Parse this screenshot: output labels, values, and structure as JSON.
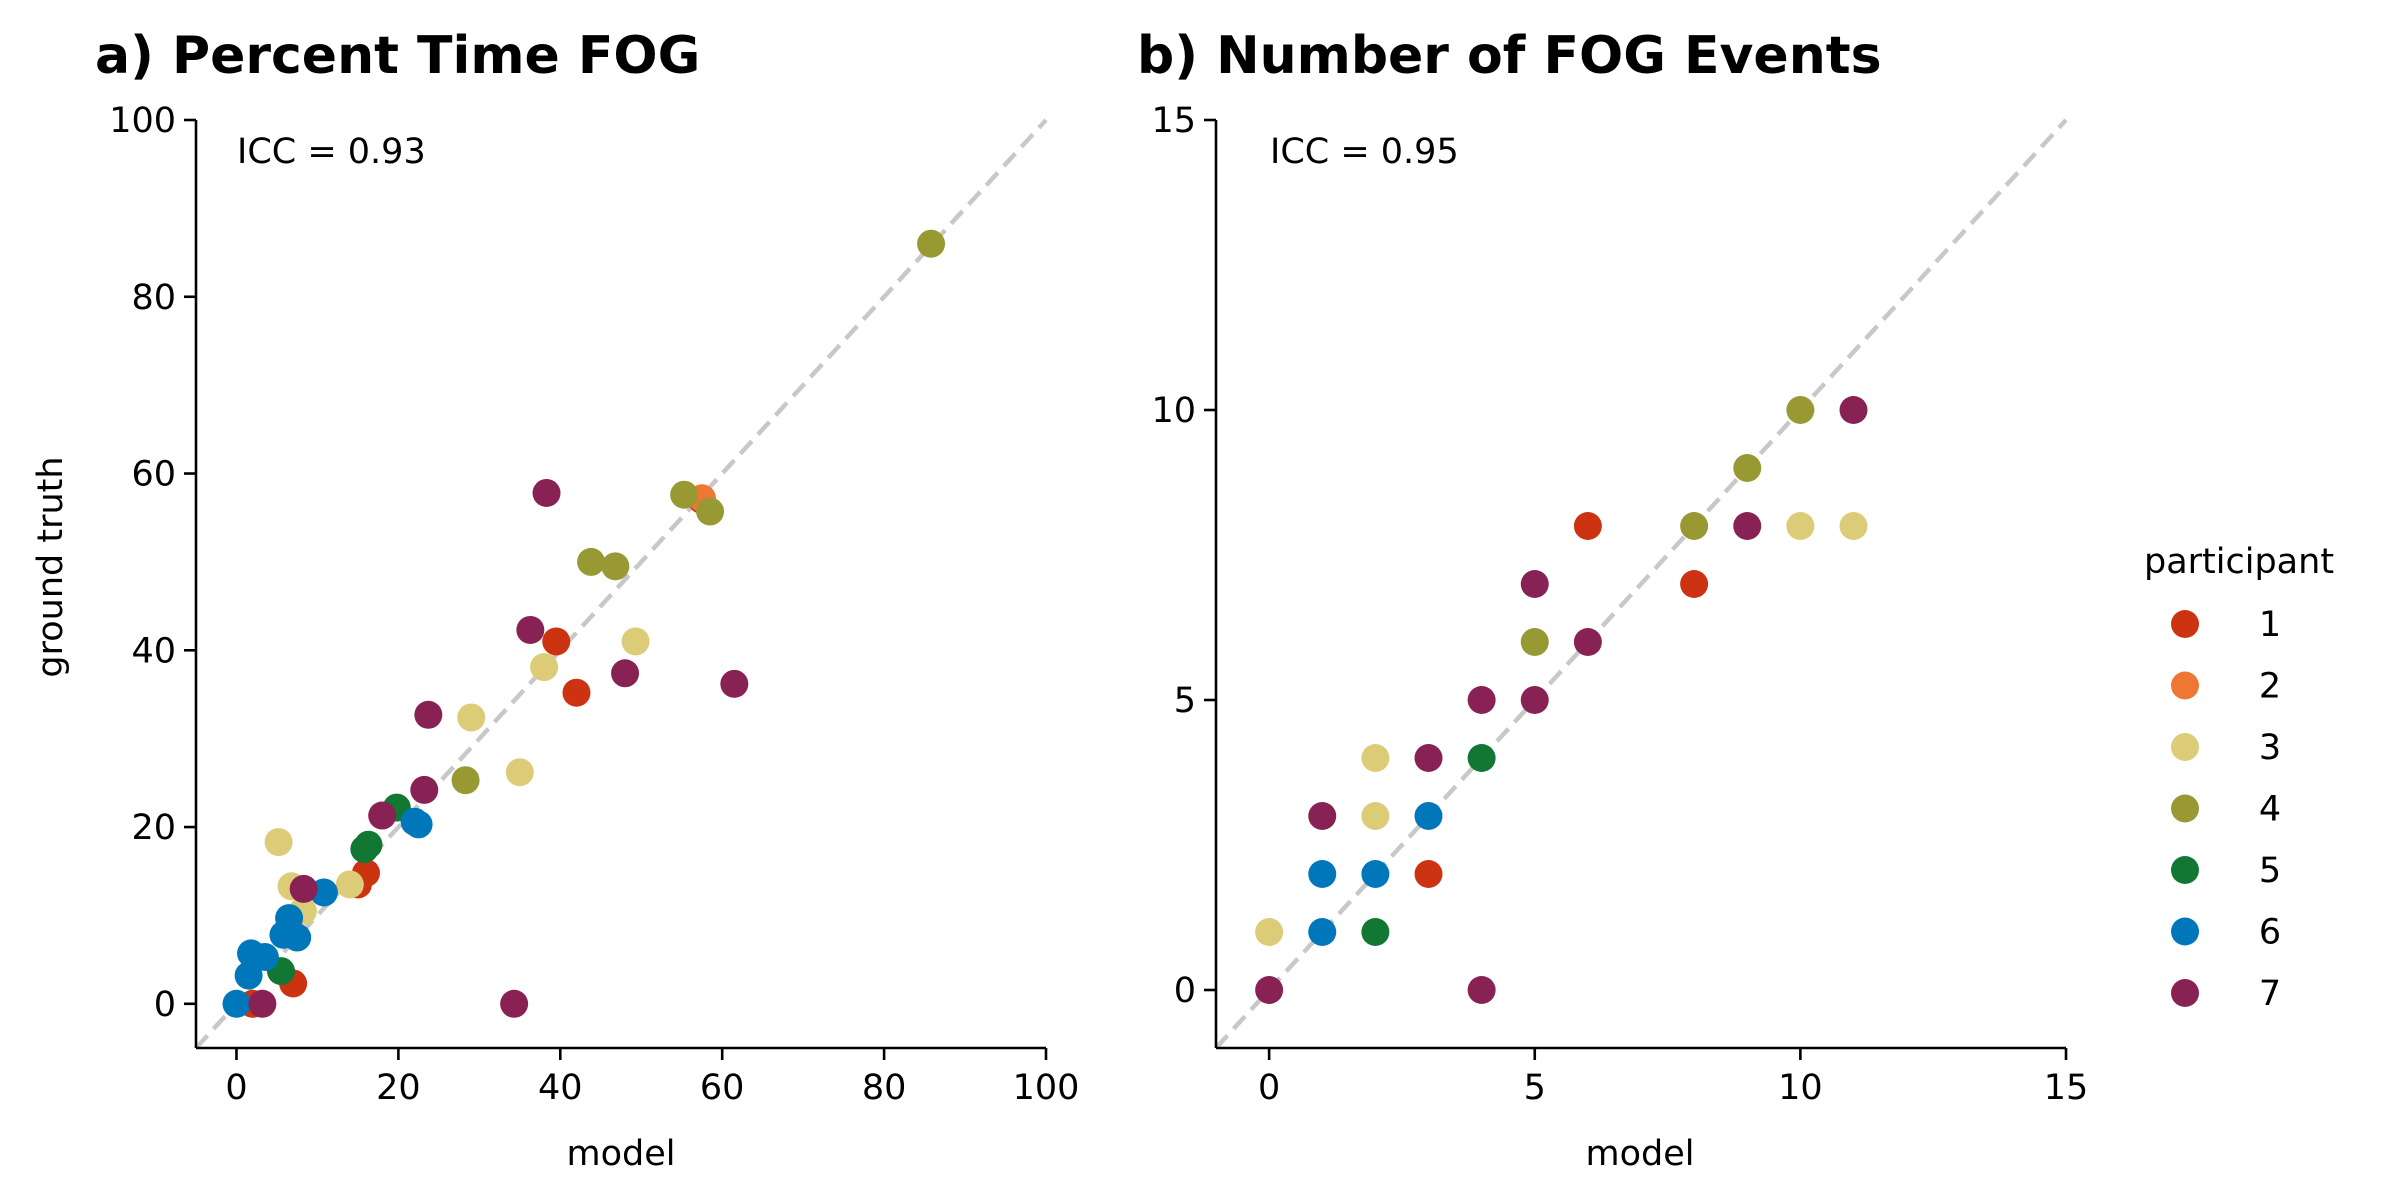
{
  "participants": [
    {
      "id": "1",
      "label": "1",
      "color": "#cc3311"
    },
    {
      "id": "2",
      "label": "2",
      "color": "#ee7733"
    },
    {
      "id": "3",
      "label": "3",
      "color": "#ddcc77"
    },
    {
      "id": "4",
      "label": "4",
      "color": "#999933"
    },
    {
      "id": "5",
      "label": "5",
      "color": "#117733"
    },
    {
      "id": "6",
      "label": "6",
      "color": "#0077bb"
    },
    {
      "id": "7",
      "label": "7",
      "color": "#882255"
    }
  ],
  "legend": {
    "title": "participant",
    "placement": "right"
  },
  "chart_data": [
    {
      "type": "scatter",
      "title": "a) Percent Time FOG",
      "annotation": "ICC = 0.93",
      "xlabel": "model",
      "ylabel": "ground truth",
      "xlim": [
        -5,
        100
      ],
      "ylim": [
        -5,
        100
      ],
      "xticks": [
        0,
        20,
        40,
        60,
        80,
        100
      ],
      "yticks": [
        0,
        20,
        40,
        60,
        80,
        100
      ],
      "xticklabels": [
        "0",
        "20",
        "40",
        "60",
        "80",
        "100"
      ],
      "yticklabels": [
        "0",
        "20",
        "40",
        "60",
        "80",
        "100"
      ],
      "reference_line": "identity",
      "grid": false,
      "series": [
        {
          "participant": "1",
          "points": [
            [
              2,
              0
            ],
            [
              7,
              2.3
            ],
            [
              15,
              13.5
            ],
            [
              16,
              14.8
            ],
            [
              39.5,
              41
            ],
            [
              42,
              35.2
            ],
            [
              57.5,
              57
            ]
          ]
        },
        {
          "participant": "2",
          "points": [
            [
              57.5,
              57.2
            ]
          ]
        },
        {
          "participant": "3",
          "points": [
            [
              5.2,
              18.3
            ],
            [
              6.8,
              13.3
            ],
            [
              8.2,
              10.5
            ],
            [
              14,
              13.5
            ],
            [
              29,
              32.4
            ],
            [
              35,
              26.2
            ],
            [
              38,
              38.1
            ],
            [
              49.3,
              41
            ]
          ]
        },
        {
          "participant": "4",
          "points": [
            [
              28.3,
              25.3
            ],
            [
              43.8,
              50
            ],
            [
              46.8,
              49.5
            ],
            [
              55.3,
              57.6
            ],
            [
              58.5,
              55.7
            ],
            [
              85.8,
              86
            ]
          ]
        },
        {
          "participant": "5",
          "points": [
            [
              5.5,
              3.7
            ],
            [
              15.8,
              17.5
            ],
            [
              16.3,
              18
            ],
            [
              19.8,
              22.2
            ]
          ]
        },
        {
          "participant": "6",
          "points": [
            [
              0,
              0
            ],
            [
              1.5,
              3.2
            ],
            [
              1.8,
              5.7
            ],
            [
              3.5,
              5.3
            ],
            [
              5.8,
              7.8
            ],
            [
              6.5,
              9.7
            ],
            [
              7.5,
              7.5
            ],
            [
              10.8,
              12.6
            ],
            [
              22,
              20.6
            ],
            [
              22.5,
              20.3
            ]
          ]
        },
        {
          "participant": "7",
          "points": [
            [
              3.2,
              0
            ],
            [
              8.3,
              13
            ],
            [
              18,
              21.3
            ],
            [
              23.2,
              24.2
            ],
            [
              23.7,
              32.7
            ],
            [
              34.3,
              0
            ],
            [
              36.3,
              42.3
            ],
            [
              38.3,
              57.8
            ],
            [
              48,
              37.4
            ],
            [
              61.5,
              36.2
            ]
          ]
        }
      ]
    },
    {
      "type": "scatter",
      "title": "b) Number of FOG Events",
      "annotation": "ICC = 0.95",
      "xlabel": "model",
      "ylabel": "",
      "xlim": [
        -1,
        15
      ],
      "ylim": [
        -1,
        15
      ],
      "xticks": [
        0,
        5,
        10,
        15
      ],
      "yticks": [
        0,
        5,
        10,
        15
      ],
      "xticklabels": [
        "0",
        "5",
        "10",
        "15"
      ],
      "yticklabels": [
        "0",
        "5",
        "10",
        "15"
      ],
      "reference_line": "identity",
      "grid": false,
      "series": [
        {
          "participant": "1",
          "points": [
            [
              3,
              2
            ],
            [
              6,
              8
            ],
            [
              8,
              7
            ]
          ]
        },
        {
          "participant": "2",
          "points": []
        },
        {
          "participant": "3",
          "points": [
            [
              0,
              1
            ],
            [
              2,
              3
            ],
            [
              2,
              4
            ],
            [
              10,
              8
            ],
            [
              11,
              8
            ]
          ]
        },
        {
          "participant": "4",
          "points": [
            [
              5,
              6
            ],
            [
              8,
              8
            ],
            [
              9,
              9
            ],
            [
              10,
              10
            ]
          ]
        },
        {
          "participant": "5",
          "points": [
            [
              2,
              1
            ],
            [
              4,
              4
            ]
          ]
        },
        {
          "participant": "6",
          "points": [
            [
              1,
              1
            ],
            [
              1,
              2
            ],
            [
              2,
              2
            ],
            [
              3,
              3
            ]
          ]
        },
        {
          "participant": "7",
          "points": [
            [
              0,
              0
            ],
            [
              1,
              3
            ],
            [
              3,
              4
            ],
            [
              4,
              0
            ],
            [
              4,
              5
            ],
            [
              5,
              5
            ],
            [
              5,
              7
            ],
            [
              6,
              6
            ],
            [
              9,
              8
            ],
            [
              11,
              10
            ]
          ]
        }
      ]
    }
  ]
}
